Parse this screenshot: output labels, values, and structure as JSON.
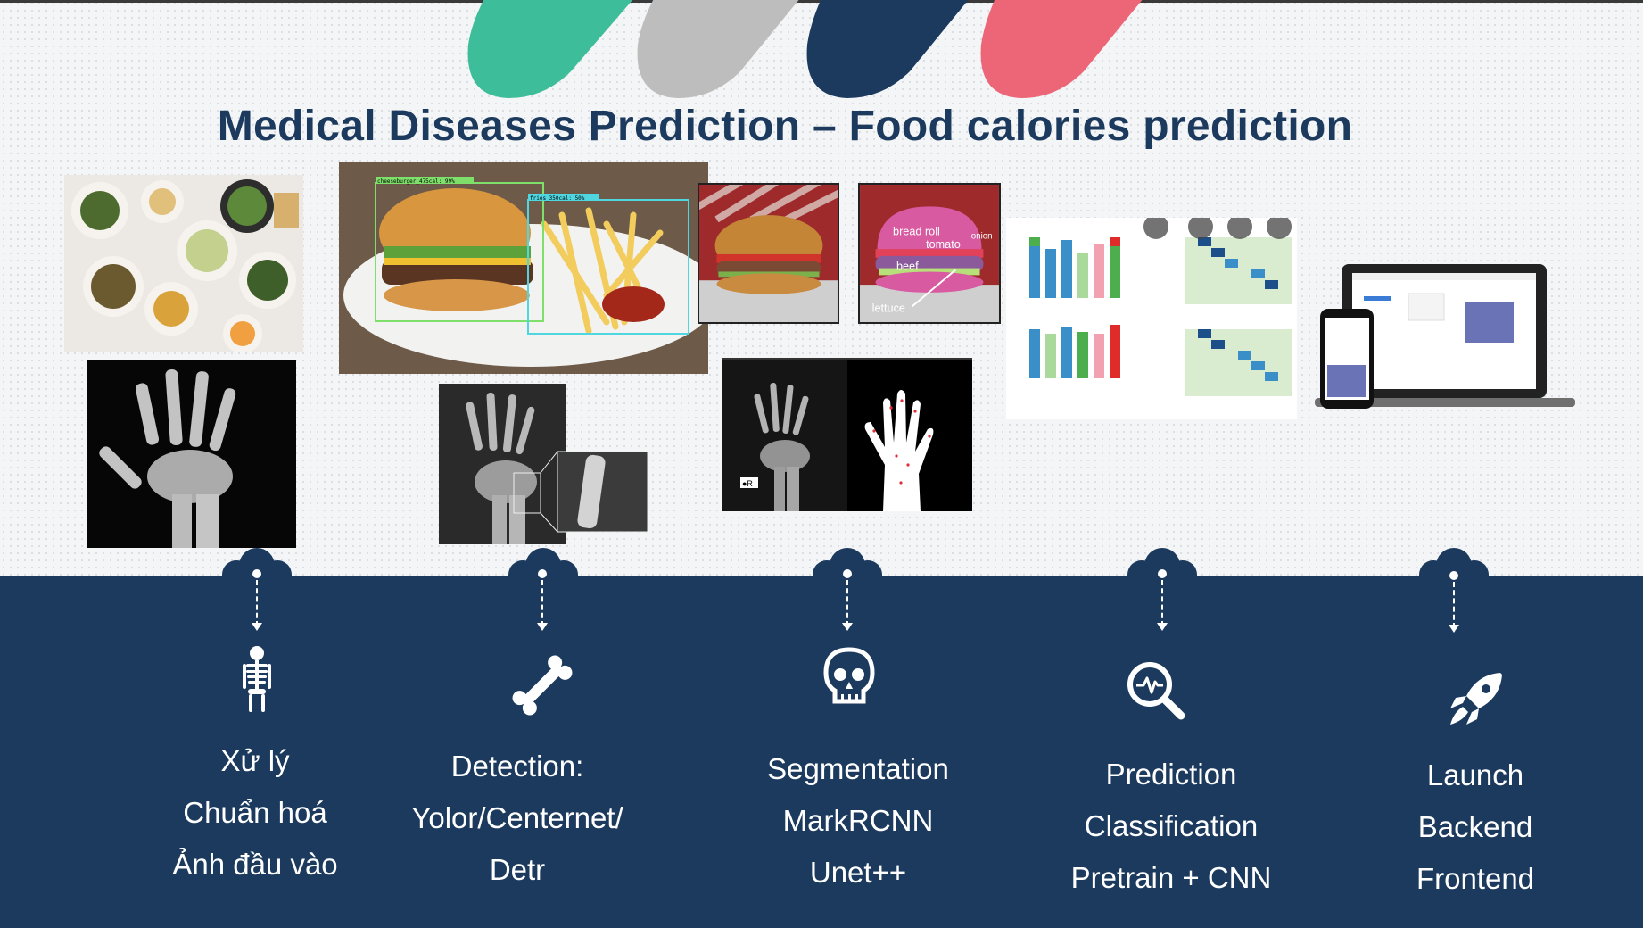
{
  "slide": {
    "title": "Medical Diseases Prediction – Food calories prediction",
    "colors": {
      "navy": "#1c3a5e",
      "green": "#3dbd9a",
      "gray": "#bdbdbd",
      "pink": "#ec6677",
      "white": "#ffffff"
    }
  },
  "images": {
    "detection": {
      "box_burger_label": "cheeseburger_475cal: 99%",
      "box_fries_label": "fries_350cal: 50%"
    },
    "segmentation_labels": [
      "bread roll",
      "tomato",
      "onion",
      "beef",
      "lettuce"
    ],
    "xray_tag": "●R"
  },
  "stages": [
    {
      "icon": "skeleton-icon",
      "lines": [
        "Xử lý",
        "Chuẩn hoá",
        "Ảnh đầu vào"
      ]
    },
    {
      "icon": "bone-icon",
      "lines": [
        "Detection:",
        "Yolor/Centernet/",
        "Detr"
      ]
    },
    {
      "icon": "skull-icon",
      "lines": [
        "Segmentation",
        "MarkRCNN",
        "Unet++"
      ]
    },
    {
      "icon": "magnifier-pulse-icon",
      "lines": [
        "Prediction",
        "Classification",
        "Pretrain + CNN"
      ]
    },
    {
      "icon": "rocket-icon",
      "lines": [
        "Launch",
        "Backend",
        "Frontend"
      ]
    }
  ]
}
